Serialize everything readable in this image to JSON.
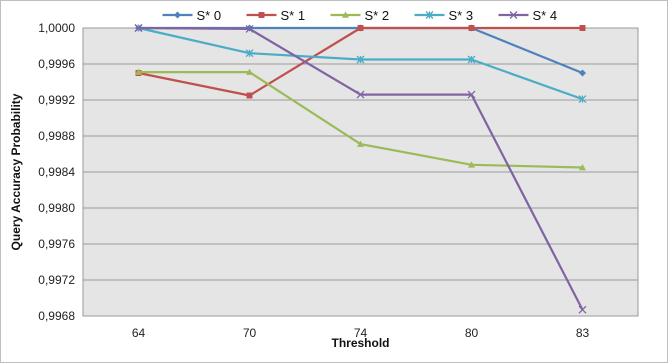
{
  "chart_data": {
    "type": "line",
    "categories": [
      "64",
      "70",
      "74",
      "80",
      "83"
    ],
    "series": [
      {
        "name": "S* 0",
        "color": "#4F81BD",
        "marker": "diamond",
        "values": [
          1.0,
          1.0,
          1.0,
          1.0,
          0.9995
        ]
      },
      {
        "name": "S* 1",
        "color": "#C0504D",
        "marker": "square",
        "values": [
          0.9995,
          0.99925,
          1.0,
          1.0,
          1.0
        ]
      },
      {
        "name": "S* 2",
        "color": "#9BBB59",
        "marker": "triangle",
        "values": [
          0.99951,
          0.99951,
          0.99871,
          0.99848,
          0.99845
        ]
      },
      {
        "name": "S* 3",
        "color": "#4BACC6",
        "marker": "asterisk",
        "values": [
          1.0,
          0.99972,
          0.99965,
          0.99965,
          0.99921
        ]
      },
      {
        "name": "S* 4",
        "color": "#8064A2",
        "marker": "x",
        "values": [
          1.0,
          0.99999,
          0.99926,
          0.99926,
          0.99687
        ]
      }
    ],
    "xlabel": "Threshold",
    "ylabel": "Query Accuracy Probability",
    "ylim": [
      0.9968,
      1.0
    ],
    "yticks": [
      "0,9968",
      "0,9972",
      "0,9976",
      "0,9980",
      "0,9984",
      "0,9988",
      "0,9992",
      "0,9996",
      "1,0000"
    ],
    "grid": true,
    "legend_position": "top"
  }
}
